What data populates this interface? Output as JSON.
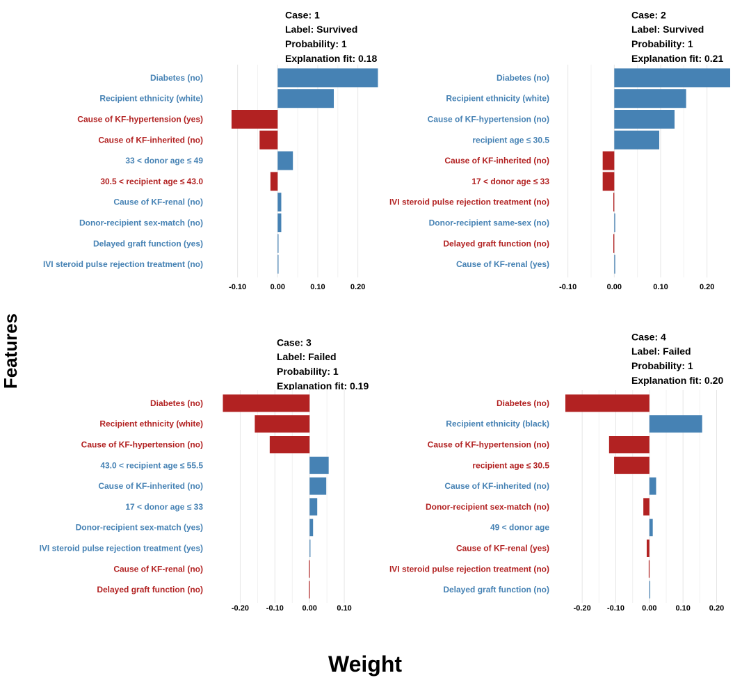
{
  "colors": {
    "positive": "#4682b4",
    "negative": "#b22222",
    "grid": "#e6e6e6"
  },
  "axis_labels": {
    "y": "Features",
    "x": "Weight"
  },
  "chart_data": [
    {
      "type": "bar",
      "orientation": "horizontal",
      "header": [
        "Case: 1",
        "Label: Survived",
        "Probability: 1",
        "Explanation fit: 0.18"
      ],
      "xlim": [
        -0.16,
        0.27
      ],
      "xticks": [
        -0.1,
        0.0,
        0.1,
        0.2
      ],
      "tick_labels": [
        "-0.10",
        "0.00",
        "0.10",
        "0.20"
      ],
      "categories": [
        "Diabetes (no)",
        "Recipient ethnicity (white)",
        "Cause of KF-hypertension (yes)",
        "Cause of KF-inherited (no)",
        "33 < donor age ≤ 49",
        "30.5 < recipient age ≤ 43.0",
        "Cause of KF-renal (no)",
        "Donor-recipient sex-match (no)",
        "Delayed graft function (yes)",
        "IVI steroid pulse rejection treatment (no)"
      ],
      "values": [
        0.25,
        0.14,
        -0.115,
        -0.045,
        0.038,
        -0.018,
        0.009,
        0.009,
        0.001,
        0.001
      ]
    },
    {
      "type": "bar",
      "orientation": "horizontal",
      "header": [
        "Case: 2",
        "Label: Survived",
        "Probability: 1",
        "Explanation fit: 0.21"
      ],
      "xlim": [
        -0.125,
        0.25
      ],
      "xticks": [
        -0.1,
        0.0,
        0.1,
        0.2
      ],
      "tick_labels": [
        "-0.10",
        "0.00",
        "0.10",
        "0.20"
      ],
      "categories": [
        "Diabetes (no)",
        "Recipient ethnicity (white)",
        "Cause of KF-hypertension (no)",
        "recipient age ≤ 30.5",
        "Cause of KF-inherited (no)",
        "17 < donor age ≤ 33",
        "IVI steroid pulse rejection treatment (no)",
        "Donor-recipient same-sex (no)",
        "Delayed graft function (no)",
        "Cause of KF-renal (yes)"
      ],
      "values": [
        0.25,
        0.155,
        0.13,
        0.097,
        -0.025,
        -0.025,
        -0.002,
        0.002,
        -0.002,
        0.002
      ]
    },
    {
      "type": "bar",
      "orientation": "horizontal",
      "header": [
        "Case: 3",
        "Label: Failed",
        "Probability: 1",
        "Explanation fit: 0.19"
      ],
      "xlim": [
        -0.255,
        0.19
      ],
      "xticks": [
        -0.2,
        -0.1,
        0.0,
        0.1
      ],
      "tick_labels": [
        "-0.20",
        "-0.10",
        "0.00",
        "0.10"
      ],
      "categories": [
        "Diabetes (no)",
        "Recipient ethnicity (white)",
        "Cause of KF-hypertension (no)",
        "43.0 < recipient age ≤ 55.5",
        "Cause of KF-inherited (no)",
        "17 < donor age ≤ 33",
        "Donor-recipient sex-match (yes)",
        "IVI steroid pulse rejection treatment (yes)",
        "Cause of KF-renal (no)",
        "Delayed graft function (no)"
      ],
      "values": [
        -0.25,
        -0.158,
        -0.115,
        0.055,
        0.048,
        0.022,
        0.01,
        0.002,
        -0.002,
        -0.002
      ]
    },
    {
      "type": "bar",
      "orientation": "horizontal",
      "header": [
        "Case: 4",
        "Label: Failed",
        "Probability: 1",
        "Explanation fit: 0.20"
      ],
      "xlim": [
        -0.25,
        0.23
      ],
      "xticks": [
        -0.2,
        -0.1,
        0.0,
        0.1,
        0.2
      ],
      "tick_labels": [
        "-0.20",
        "-0.10",
        "0.00",
        "0.10",
        "0.20"
      ],
      "categories": [
        "Diabetes (no)",
        "Recipient ethnicity (black)",
        "Cause of KF-hypertension (no)",
        "recipient age ≤ 30.5",
        "Cause of KF-inherited (no)",
        "Donor-recipient sex-match (no)",
        "49 < donor age",
        "Cause of KF-renal (yes)",
        "IVI steroid pulse rejection treatment (no)",
        "Delayed graft function (no)"
      ],
      "values": [
        -0.25,
        0.157,
        -0.12,
        -0.105,
        0.02,
        -0.018,
        0.01,
        -0.008,
        -0.002,
        0.0
      ]
    }
  ]
}
